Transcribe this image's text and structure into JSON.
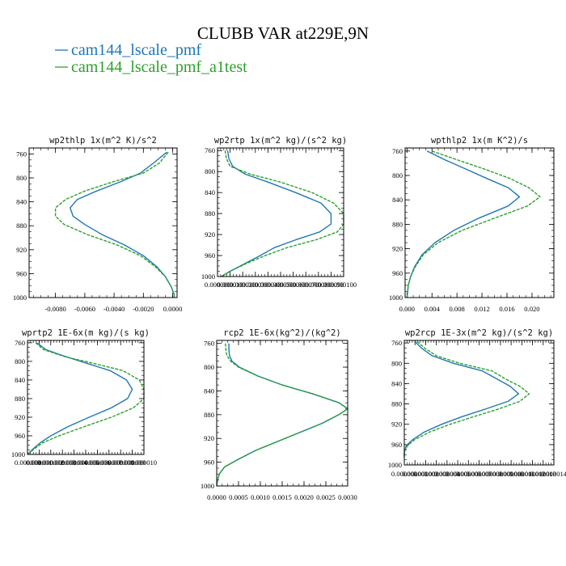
{
  "figure": {
    "title": "CLUBB VAR at229E,9N",
    "legend": [
      {
        "label": "cam144_lscale_pmf",
        "color": "#1f77b4"
      },
      {
        "label": "cam144_lscale_pmf_a1test",
        "color": "#2ca02c"
      }
    ]
  },
  "chart_data": [
    {
      "type": "line",
      "title": "wp2thlp  1x(m^2 K)/s^2",
      "xlim": [
        -0.0098,
        0.0003
      ],
      "ylim": [
        1000,
        750
      ],
      "xticks": [
        -0.008,
        -0.006,
        -0.004,
        -0.002,
        0.0
      ],
      "xtick_labels": [
        "-0.0080",
        "-0.0060",
        "-0.0040",
        "-0.0020",
        "0.0000"
      ],
      "yticks": [
        760,
        800,
        840,
        880,
        920,
        960,
        1000
      ],
      "y": [
        757,
        775,
        792,
        806,
        822,
        836,
        850,
        864,
        878,
        895,
        912,
        930,
        948,
        965,
        982,
        995,
        1000
      ],
      "series": [
        {
          "name": "cam144_lscale_pmf",
          "color": "#1f77b4",
          "dashed": false,
          "values": [
            -0.0004,
            -0.0013,
            -0.0022,
            -0.0035,
            -0.0052,
            -0.0065,
            -0.007,
            -0.0068,
            -0.006,
            -0.0048,
            -0.0033,
            -0.002,
            -0.0011,
            -0.0005,
            -0.0001,
            0.0001,
            0.0001
          ]
        },
        {
          "name": "cam144_lscale_pmf_a1test",
          "color": "#2ca02c",
          "dashed": true,
          "values": [
            -0.0003,
            -0.0009,
            -0.002,
            -0.004,
            -0.006,
            -0.0073,
            -0.008,
            -0.008,
            -0.0074,
            -0.0058,
            -0.0038,
            -0.0022,
            -0.0012,
            -0.0005,
            -0.0001,
            0.0001,
            0.0001
          ]
        }
      ]
    },
    {
      "type": "line",
      "title": "wp2rtp  1x(m^2 kg)/(s^2 kg)",
      "xlim": [
        0,
        0.0001
      ],
      "ylim": [
        1000,
        755
      ],
      "xticks": [
        0,
        1e-05,
        2e-05,
        3e-05,
        4e-05,
        5e-05,
        6e-05,
        7e-05,
        8e-05,
        9e-05,
        0.0001
      ],
      "xtick_labels": [
        "0.000000",
        "0.000010",
        "0.000020",
        "0.000030",
        "0.000040",
        "0.000050",
        "0.000060",
        "0.000070",
        "0.000080",
        "0.000090",
        "0.000100"
      ],
      "yticks": [
        760,
        800,
        840,
        880,
        920,
        960,
        1000
      ],
      "y": [
        760,
        775,
        790,
        805,
        820,
        840,
        860,
        880,
        900,
        915,
        930,
        945,
        960,
        975,
        990,
        1000
      ],
      "series": [
        {
          "name": "cam144_lscale_pmf",
          "color": "#1f77b4",
          "dashed": false,
          "values": [
            8e-06,
            9e-06,
            1.2e-05,
            2.2e-05,
            4e-05,
            6.2e-05,
            8.2e-05,
            9e-05,
            9e-05,
            8.1e-05,
            6.2e-05,
            4.5e-05,
            3.4e-05,
            2.2e-05,
            1e-05,
            3e-06
          ]
        },
        {
          "name": "cam144_lscale_pmf_a1test",
          "color": "#2ca02c",
          "dashed": true,
          "values": [
            6e-06,
            7e-06,
            1e-05,
            2.6e-05,
            5e-05,
            7.5e-05,
            9.2e-05,
            0.0001,
            0.0001,
            9.5e-05,
            7.8e-05,
            5.5e-05,
            3.8e-05,
            2.3e-05,
            1e-05,
            3e-06
          ]
        }
      ]
    },
    {
      "type": "line",
      "title": "wpthlp2  1x(m K^2)/s",
      "xlim": [
        -0.0003,
        0.0235
      ],
      "ylim": [
        1000,
        755
      ],
      "xticks": [
        0,
        0.004,
        0.008,
        0.012,
        0.016,
        0.02
      ],
      "xtick_labels": [
        "0.000",
        "0.004",
        "0.008",
        "0.012",
        "0.016",
        "0.020"
      ],
      "yticks": [
        760,
        800,
        840,
        880,
        920,
        960,
        1000
      ],
      "y": [
        760,
        775,
        790,
        805,
        820,
        835,
        850,
        870,
        890,
        910,
        930,
        950,
        965,
        980,
        992,
        1000
      ],
      "series": [
        {
          "name": "cam144_lscale_pmf",
          "color": "#1f77b4",
          "dashed": false,
          "values": [
            0.0032,
            0.0062,
            0.0095,
            0.0128,
            0.0162,
            0.018,
            0.0162,
            0.0115,
            0.0075,
            0.0045,
            0.0024,
            0.0012,
            0.0006,
            0.0002,
            0.0001,
            0.0
          ]
        },
        {
          "name": "cam144_lscale_pmf_a1test",
          "color": "#2ca02c",
          "dashed": true,
          "values": [
            0.004,
            0.0082,
            0.0125,
            0.0165,
            0.0195,
            0.0213,
            0.0193,
            0.014,
            0.0088,
            0.005,
            0.0026,
            0.0013,
            0.0006,
            0.0002,
            0.0001,
            0.0
          ]
        }
      ]
    },
    {
      "type": "line",
      "title": "wprtp2  1E-6x(m kg)/(s kg)",
      "xlim": [
        0,
        1e-05
      ],
      "ylim": [
        1000,
        755
      ],
      "xticks": [
        0,
        1e-06,
        2e-06,
        3e-06,
        4e-06,
        5e-06,
        6e-06,
        7e-06,
        8e-06,
        9e-06,
        1e-05
      ],
      "xtick_labels": [
        "0.000000",
        "0.000001",
        "0.000002",
        "0.000003",
        "0.000004",
        "0.000005",
        "0.000006",
        "0.000007",
        "0.000008",
        "0.000009",
        "0.000010"
      ],
      "yticks": [
        760,
        800,
        840,
        880,
        920,
        960,
        1000
      ],
      "y": [
        760,
        775,
        790,
        805,
        820,
        840,
        860,
        880,
        900,
        920,
        940,
        960,
        975,
        990,
        1000
      ],
      "series": [
        {
          "name": "cam144_lscale_pmf",
          "color": "#1f77b4",
          "dashed": false,
          "values": [
            8e-07,
            1.6e-06,
            3.3e-06,
            5.2e-06,
            7.1e-06,
            8.5e-06,
            9e-06,
            8.6e-06,
            7.2e-06,
            5.3e-06,
            3.5e-06,
            2e-06,
            1.1e-06,
            4e-07,
            0.0
          ]
        },
        {
          "name": "cam144_lscale_pmf_a1test",
          "color": "#2ca02c",
          "dashed": true,
          "values": [
            7e-07,
            1.4e-06,
            3.2e-06,
            5.8e-06,
            8.2e-06,
            9.6e-06,
            1e-05,
            1e-05,
            9.1e-06,
            7.2e-06,
            4.9e-06,
            2.7e-06,
            1.3e-06,
            5e-07,
            0.0
          ]
        }
      ]
    },
    {
      "type": "line",
      "title": "rcp2  1E-6x(kg^2)/(kg^2)",
      "xlim": [
        0,
        0.003
      ],
      "ylim": [
        1000,
        755
      ],
      "xticks": [
        0,
        0.0005,
        0.001,
        0.0015,
        0.002,
        0.0025,
        0.003
      ],
      "xtick_labels": [
        "0.0000",
        "0.0005",
        "0.0010",
        "0.0015",
        "0.0020",
        "0.0025",
        "0.0030"
      ],
      "yticks": [
        760,
        800,
        840,
        880,
        920,
        960,
        1000
      ],
      "y": [
        760,
        770,
        780,
        790,
        800,
        815,
        830,
        845,
        860,
        870,
        880,
        895,
        910,
        925,
        940,
        955,
        968,
        980,
        990,
        1000
      ],
      "series": [
        {
          "name": "cam144_lscale_pmf",
          "color": "#1f77b4",
          "dashed": false,
          "values": [
            0.00028,
            0.00028,
            0.00029,
            0.00035,
            0.00052,
            0.00095,
            0.0015,
            0.0022,
            0.0028,
            0.003,
            0.0028,
            0.0024,
            0.0019,
            0.0014,
            0.0009,
            0.0005,
            0.00018,
            6e-05,
            2e-05,
            0.0
          ]
        },
        {
          "name": "cam144_lscale_pmf_a1test",
          "color": "#2ca02c",
          "dashed": true,
          "values": [
            0.0002,
            0.00021,
            0.00023,
            0.00032,
            0.0005,
            0.00094,
            0.0015,
            0.0022,
            0.0028,
            0.003,
            0.0028,
            0.0024,
            0.0019,
            0.0014,
            0.0009,
            0.0005,
            0.00018,
            6e-05,
            2e-05,
            0.0
          ]
        }
      ]
    },
    {
      "type": "line",
      "title": "wp2rcp  1E-3x(m^2 kg)/(s^2 kg)",
      "xlim": [
        0,
        1.4e-05
      ],
      "ylim": [
        1000,
        755
      ],
      "xticks": [
        0,
        1e-06,
        2e-06,
        3e-06,
        4e-06,
        5e-06,
        6e-06,
        7e-06,
        8e-06,
        9e-06,
        1e-05,
        1.1e-05,
        1.2e-05,
        1.3e-05,
        1.4e-05
      ],
      "xtick_labels": [
        "0.000000",
        "0.000001",
        "0.000002",
        "0.000003",
        "0.000004",
        "0.000005",
        "0.000006",
        "0.000007",
        "0.000008",
        "0.000009",
        "0.000010",
        "0.000011",
        "0.000012",
        "0.000013",
        "0.000014"
      ],
      "yticks": [
        760,
        800,
        840,
        880,
        920,
        960,
        1000
      ],
      "y": [
        757,
        770,
        785,
        800,
        815,
        830,
        845,
        860,
        875,
        890,
        905,
        920,
        935,
        950,
        962,
        975,
        985
      ],
      "series": [
        {
          "name": "cam144_lscale_pmf",
          "color": "#1f77b4",
          "dashed": false,
          "values": [
            1e-06,
            1.6e-06,
            2.6e-06,
            4.6e-06,
            7.3e-06,
            8.6e-06,
            9.9e-06,
            1.07e-05,
            9.7e-06,
            7.6e-06,
            5.4e-06,
            3.5e-06,
            1.9e-06,
            8e-07,
            2e-07,
            0.0,
            0.0
          ]
        },
        {
          "name": "cam144_lscale_pmf_a1test",
          "color": "#2ca02c",
          "dashed": true,
          "values": [
            1.2e-06,
            1.9e-06,
            3e-06,
            5.2e-06,
            8.2e-06,
            9.4e-06,
            1.08e-05,
            1.17e-05,
            1.08e-05,
            8.8e-06,
            6.5e-06,
            4.3e-06,
            2.4e-06,
            1e-06,
            3e-07,
            0.0,
            0.0
          ]
        }
      ]
    }
  ]
}
